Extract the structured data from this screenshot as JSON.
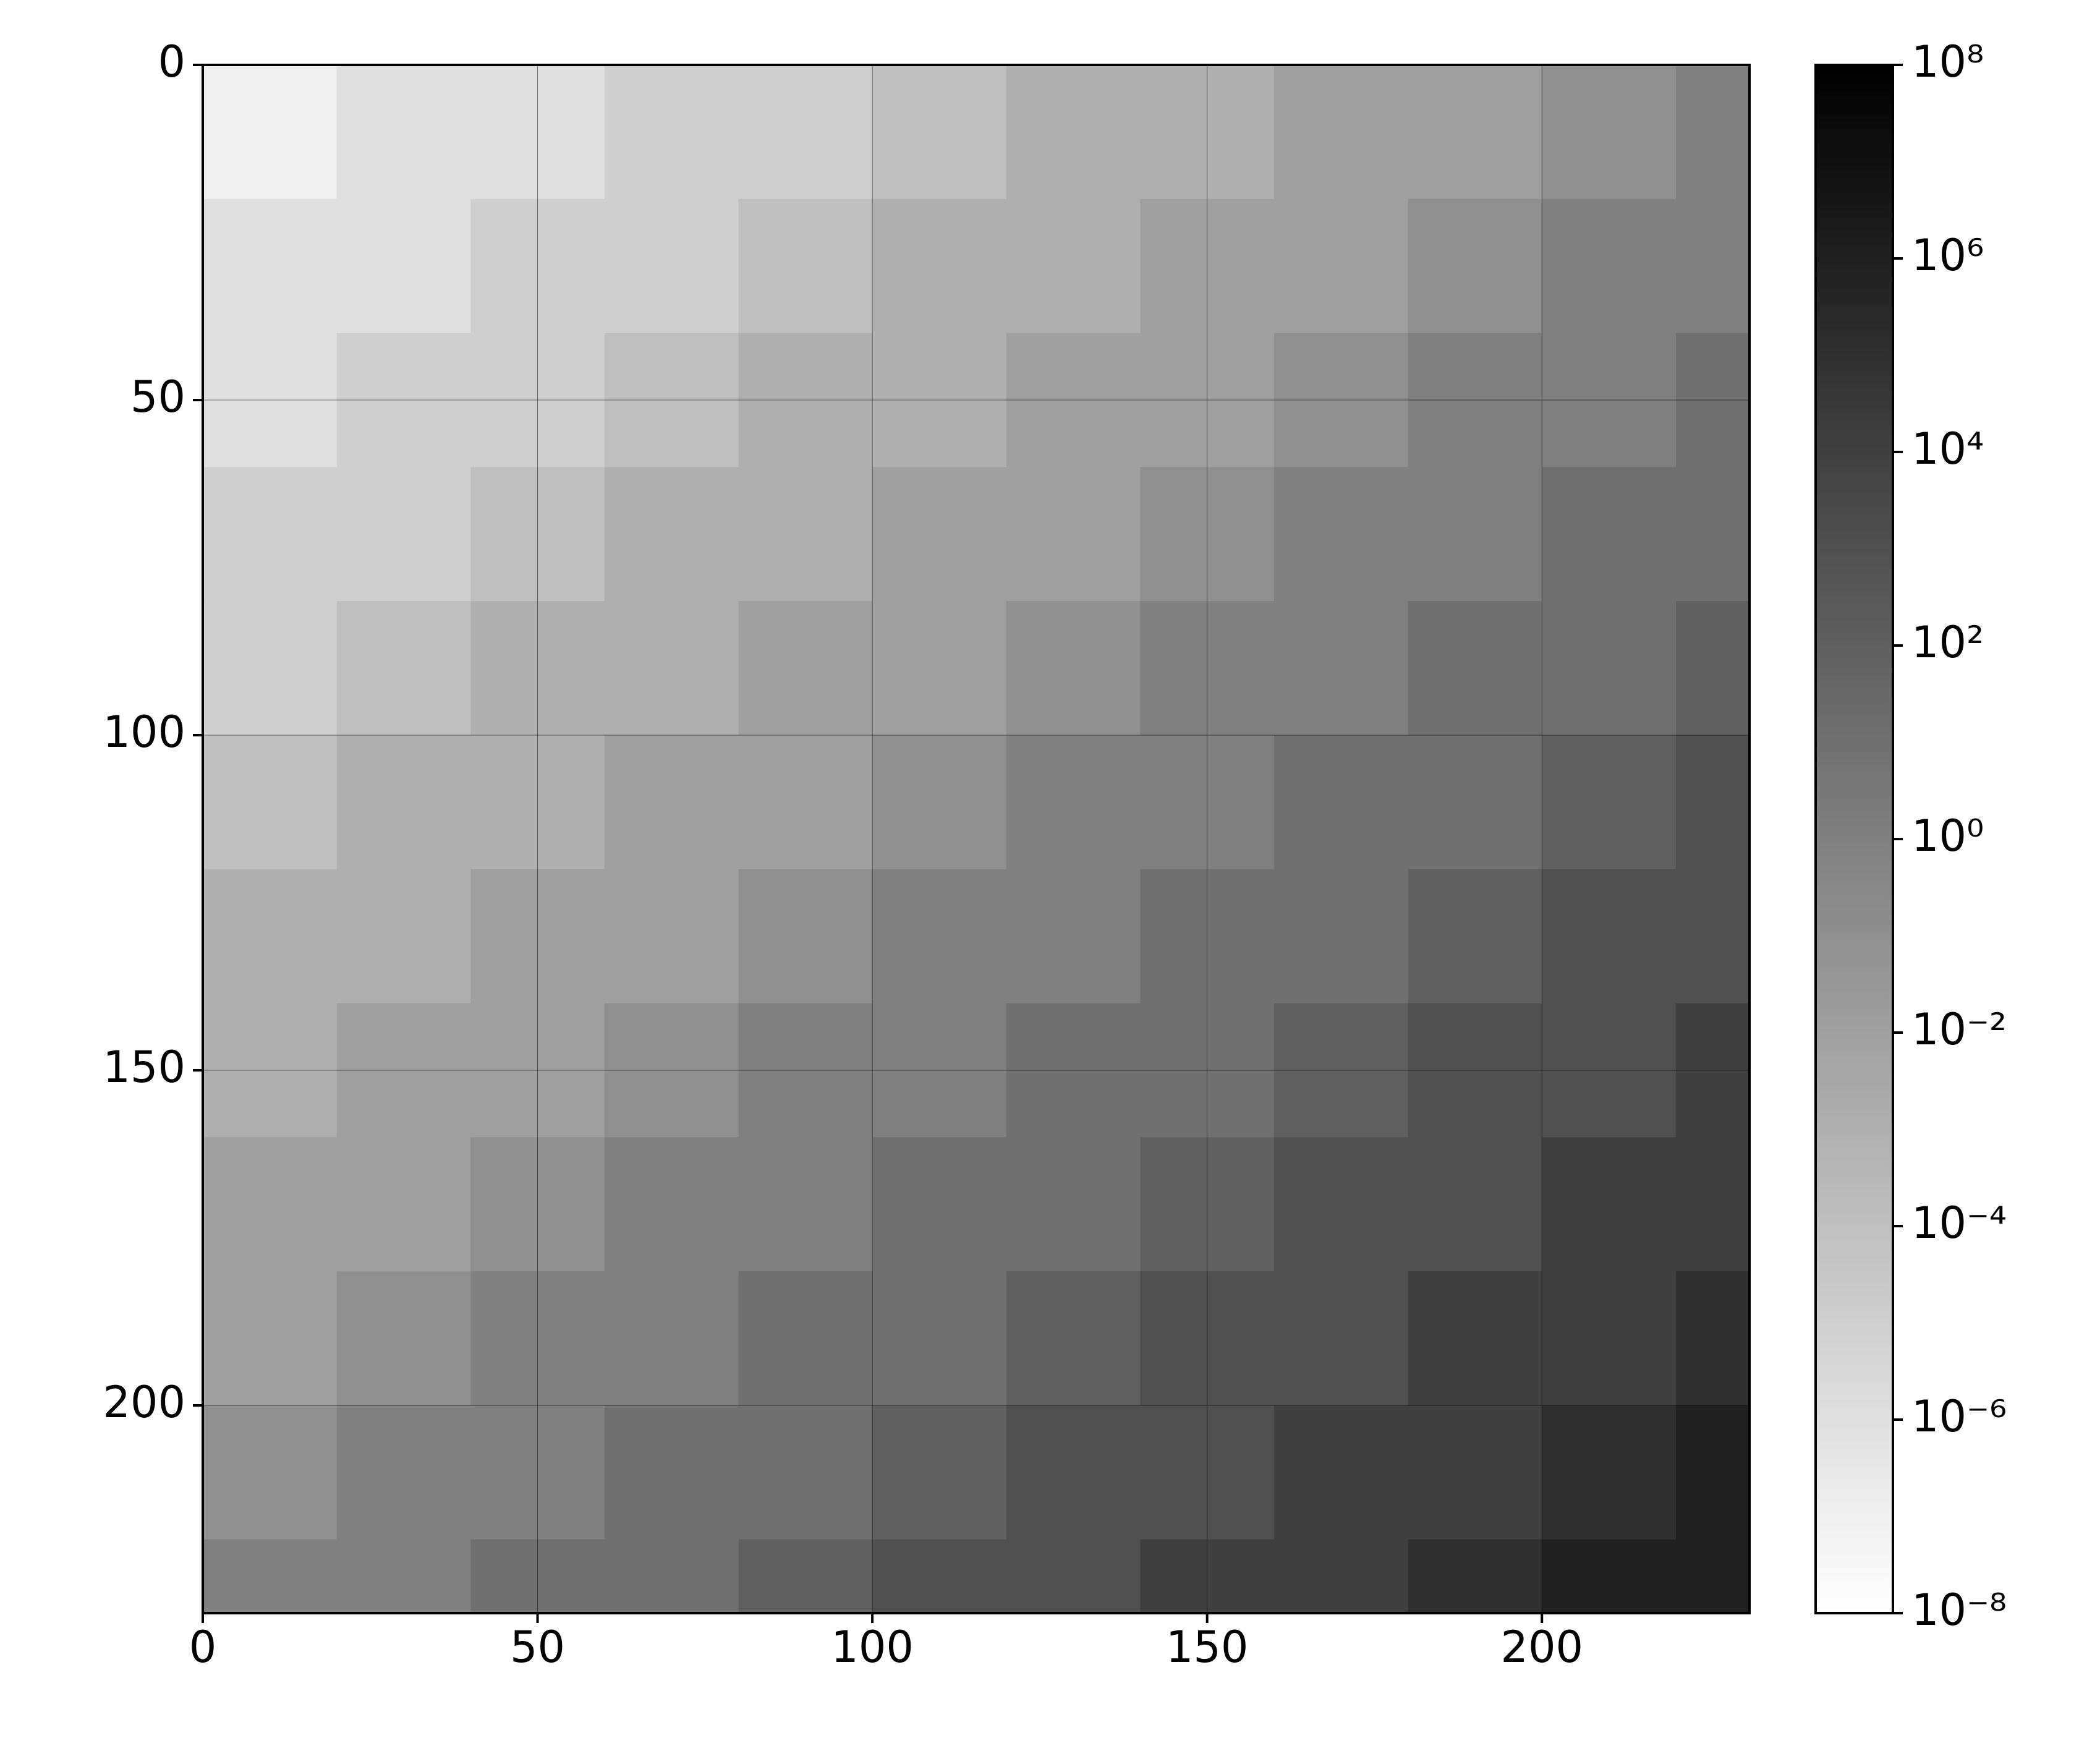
{
  "chart_data": {
    "type": "heatmap",
    "xbins": [
      0,
      20,
      40,
      60,
      80,
      100,
      120,
      140,
      160,
      180,
      200,
      220,
      231
    ],
    "ybins": [
      0,
      20,
      40,
      60,
      80,
      100,
      120,
      140,
      160,
      180,
      200,
      220,
      231
    ],
    "values": [
      [
        1e-07,
        1e-06,
        1e-06,
        1e-05,
        1e-05,
        0.0001,
        0.001,
        0.001,
        0.01,
        0.01,
        0.1,
        1
      ],
      [
        1e-06,
        1e-06,
        1e-05,
        1e-05,
        0.0001,
        0.001,
        0.001,
        0.01,
        0.01,
        0.1,
        1,
        1
      ],
      [
        1e-06,
        1e-05,
        1e-05,
        0.0001,
        0.001,
        0.001,
        0.01,
        0.01,
        0.1,
        1,
        1,
        10
      ],
      [
        1e-05,
        1e-05,
        0.0001,
        0.001,
        0.001,
        0.01,
        0.01,
        0.1,
        1,
        1,
        10,
        10
      ],
      [
        1e-05,
        0.0001,
        0.001,
        0.001,
        0.01,
        0.01,
        0.1,
        1,
        1,
        10,
        10,
        100
      ],
      [
        0.0001,
        0.001,
        0.001,
        0.01,
        0.01,
        0.1,
        1,
        1,
        10,
        10,
        100,
        1000
      ],
      [
        0.001,
        0.001,
        0.01,
        0.01,
        0.1,
        1,
        1,
        10,
        10,
        100,
        1000,
        1000
      ],
      [
        0.001,
        0.01,
        0.01,
        0.1,
        1,
        1,
        10,
        10,
        100,
        1000,
        1000,
        10000.0
      ],
      [
        0.01,
        0.01,
        0.1,
        1,
        1,
        10,
        10,
        100,
        1000,
        1000,
        10000.0,
        10000.0
      ],
      [
        0.01,
        0.1,
        1,
        1,
        10,
        10,
        100,
        1000,
        1000,
        10000.0,
        10000.0,
        100000.0
      ],
      [
        0.1,
        1,
        1,
        10,
        10,
        100,
        1000,
        1000,
        10000.0,
        10000.0,
        100000.0,
        1000000.0
      ],
      [
        1,
        1,
        10,
        10,
        100,
        1000,
        1000,
        10000.0,
        10000.0,
        100000.0,
        1000000.0,
        1000000.0
      ]
    ],
    "xlim": [
      0,
      231
    ],
    "ylim": [
      231,
      0
    ],
    "xticks": [
      0,
      50,
      100,
      150,
      200
    ],
    "yticks": [
      0,
      50,
      100,
      150,
      200
    ],
    "grid": true,
    "colormap": "gray_r",
    "color_log": true,
    "clim": [
      1e-08,
      100000000.0
    ],
    "cticks": [
      {
        "value": 1e-08,
        "label": "10⁻⁸"
      },
      {
        "value": 1e-06,
        "label": "10⁻⁶"
      },
      {
        "value": 0.0001,
        "label": "10⁻⁴"
      },
      {
        "value": 0.01,
        "label": "10⁻²"
      },
      {
        "value": 1,
        "label": "10⁰"
      },
      {
        "value": 100,
        "label": "10²"
      },
      {
        "value": 10000.0,
        "label": "10⁴"
      },
      {
        "value": 1000000.0,
        "label": "10⁶"
      },
      {
        "value": 100000000.0,
        "label": "10⁸"
      }
    ]
  }
}
